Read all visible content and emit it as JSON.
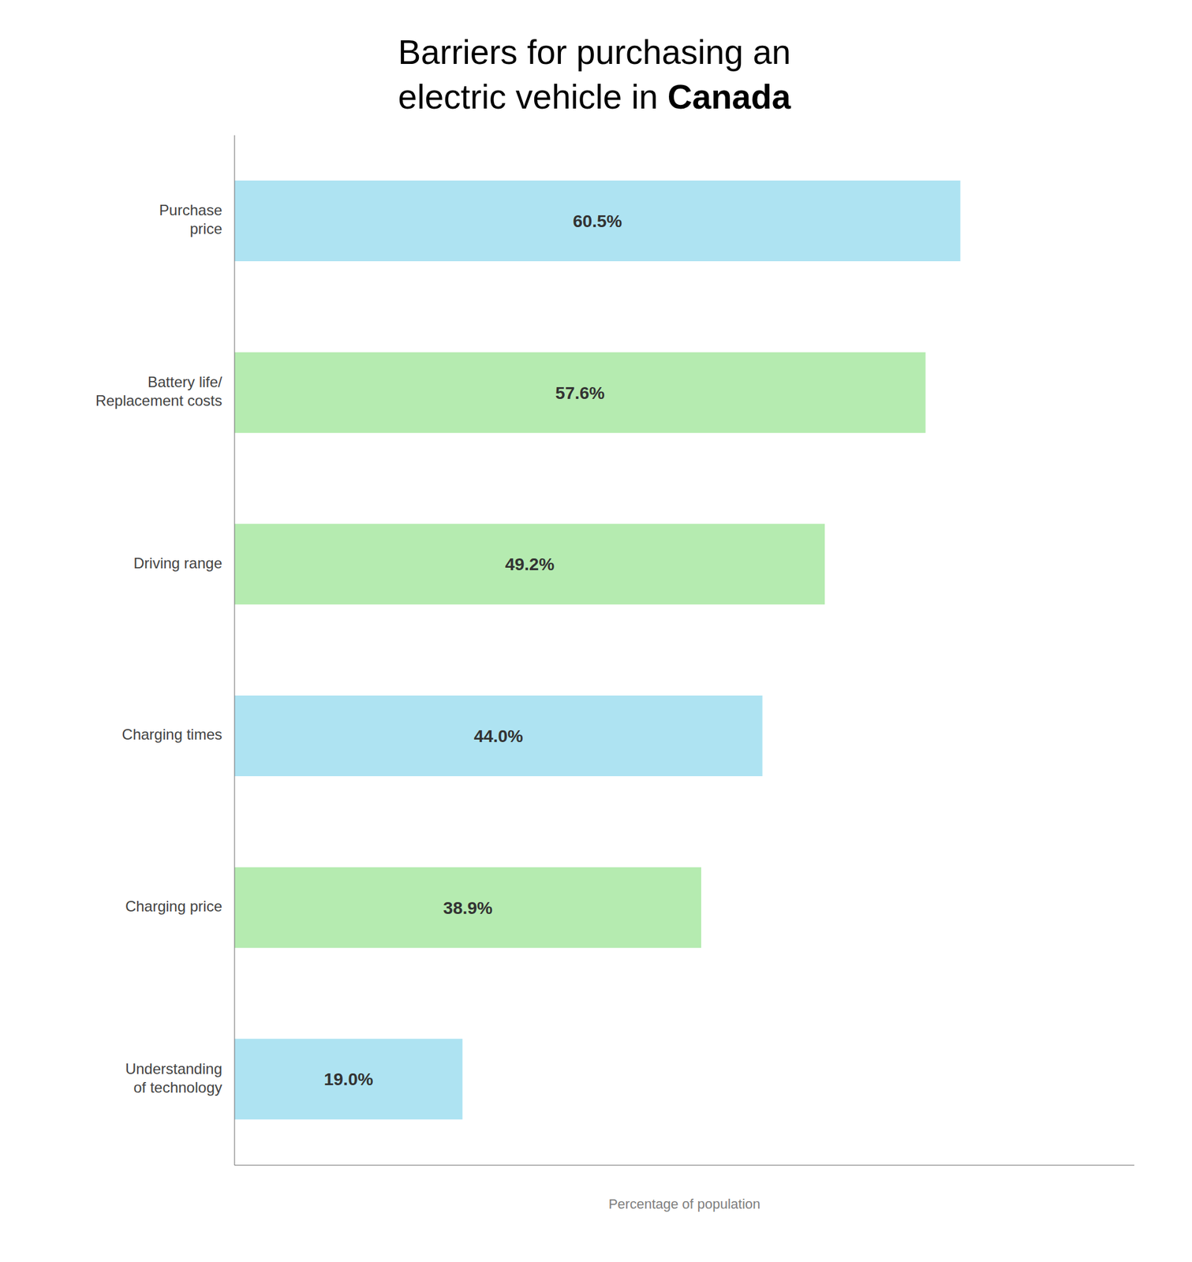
{
  "chart_data": {
    "type": "bar",
    "orientation": "horizontal",
    "title": "Barriers for purchasing an\nelectric vehicle in Canada",
    "categories": [
      "Purchase\nprice",
      "Battery life/\nReplacement costs",
      "Driving range",
      "Charging times",
      "Charging price",
      "Understanding\nof technology"
    ],
    "values": [
      60.5,
      57.6,
      49.2,
      44.0,
      38.9,
      19.0
    ],
    "value_labels": [
      "60.5%",
      "57.6%",
      "49.2%",
      "44.0%",
      "38.9%",
      "19.0%"
    ],
    "data_labels": true,
    "colors": [
      "#aee3f2",
      "#b5ebb0",
      "#b5ebb0",
      "#aee3f2",
      "#b5ebb0",
      "#aee3f2"
    ],
    "xlabel": "Percentage of population",
    "xlim": [
      0,
      75
    ],
    "xticks": [],
    "tick_labels": "y",
    "grid": false
  }
}
